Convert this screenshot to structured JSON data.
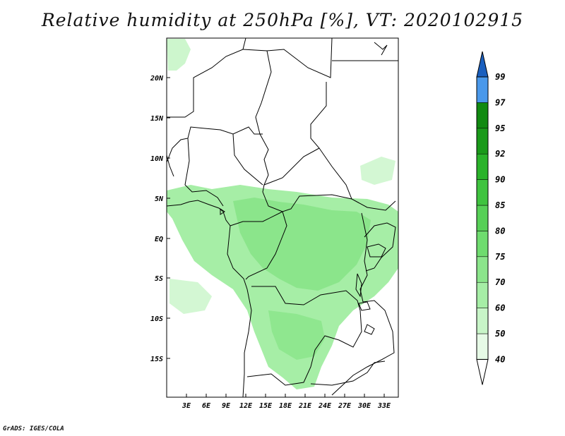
{
  "title": "Relative humidity at 250hPa [%], VT: 2020102915",
  "credit": "GrADS: IGES/COLA",
  "map": {
    "lat_labels": [
      "20N",
      "15N",
      "10N",
      "5N",
      "EQ",
      "5S",
      "10S",
      "15S"
    ],
    "lon_labels": [
      "3E",
      "6E",
      "9E",
      "12E",
      "15E",
      "18E",
      "21E",
      "24E",
      "27E",
      "30E",
      "33E"
    ]
  },
  "colorbar": {
    "levels": [
      "40",
      "50",
      "60",
      "70",
      "75",
      "80",
      "85",
      "90",
      "92",
      "95",
      "97",
      "99"
    ],
    "colors": [
      "#e6fae6",
      "#c8f5c8",
      "#a6eea6",
      "#8be58b",
      "#6fdc6f",
      "#57d057",
      "#3fc33f",
      "#2ab32a",
      "#1a9a1a",
      "#118a11",
      "#4a98ea",
      "#2b7ad6",
      "#1a5fbe"
    ],
    "under_color": "#ffffff",
    "over_color": "#1a5fbe"
  }
}
